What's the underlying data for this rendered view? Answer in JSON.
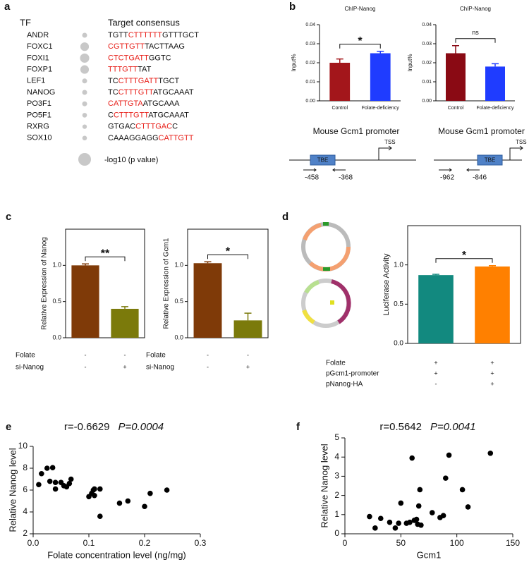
{
  "panel_labels": [
    "a",
    "b",
    "c",
    "d",
    "e",
    "f"
  ],
  "tf_table": {
    "headers": [
      "TF",
      "Target consensus"
    ],
    "rows": [
      {
        "tf": "ANDR",
        "p": 1.0,
        "segments": [
          {
            "text": "TGTT",
            "color": "#111111"
          },
          {
            "text": "CTTTTTT",
            "color": "#e8201a"
          },
          {
            "text": "GTTTGCT",
            "color": "#111111"
          }
        ]
      },
      {
        "tf": "FOXC1",
        "p": 3.0,
        "segments": [
          {
            "text": "CGTTGTT",
            "color": "#e8201a"
          },
          {
            "text": "TACTTAAG",
            "color": "#111111"
          }
        ]
      },
      {
        "tf": "FOXI1",
        "p": 3.5,
        "segments": [
          {
            "text": "CTCTGATT",
            "color": "#e8201a"
          },
          {
            "text": "GGTC",
            "color": "#111111"
          }
        ]
      },
      {
        "tf": "FOXP1",
        "p": 3.0,
        "segments": [
          {
            "text": "TTTGTT",
            "color": "#e8201a"
          },
          {
            "text": "TAT",
            "color": "#111111"
          }
        ]
      },
      {
        "tf": "LEF1",
        "p": 1.0,
        "segments": [
          {
            "text": "TC",
            "color": "#111111"
          },
          {
            "text": "CTTTGATT",
            "color": "#e8201a"
          },
          {
            "text": "TGCT",
            "color": "#111111"
          }
        ]
      },
      {
        "tf": "NANOG",
        "p": 1.0,
        "segments": [
          {
            "text": "TC",
            "color": "#111111"
          },
          {
            "text": "CTTTGTT",
            "color": "#e8201a"
          },
          {
            "text": "ATGCAAAT",
            "color": "#111111"
          }
        ]
      },
      {
        "tf": "PO3F1",
        "p": 1.0,
        "segments": [
          {
            "text": "CATTGTA",
            "color": "#e8201a"
          },
          {
            "text": "ATGCAAA",
            "color": "#111111"
          }
        ]
      },
      {
        "tf": "PO5F1",
        "p": 0.9,
        "segments": [
          {
            "text": "C",
            "color": "#111111"
          },
          {
            "text": "CTTTGTT",
            "color": "#e8201a"
          },
          {
            "text": "ATGCAAAT",
            "color": "#111111"
          }
        ]
      },
      {
        "tf": "RXRG",
        "p": 0.8,
        "segments": [
          {
            "text": "GTGAC",
            "color": "#111111"
          },
          {
            "text": "CTTTGAC",
            "color": "#e8201a"
          },
          {
            "text": "C",
            "color": "#111111"
          }
        ]
      },
      {
        "tf": "SOX10",
        "p": 0.9,
        "segments": [
          {
            "text": "CAAAGGAGG",
            "color": "#111111"
          },
          {
            "text": "CATTGTT",
            "color": "#e8201a"
          }
        ]
      }
    ],
    "legend": "-log10 (p value)"
  },
  "promoters": [
    {
      "title": "Mouse Gcm1 promoter",
      "box": "TBE",
      "tss": "TSS",
      "forward": "-458",
      "reverse": "-368"
    },
    {
      "title": "Mouse Gcm1 promoter",
      "box": "TBE",
      "tss": "TSS",
      "forward": "-962",
      "reverse": "-846"
    }
  ],
  "chart_data": [
    {
      "type": "bar",
      "title": "ChIP-Nanog",
      "ylabel": "Input%",
      "categories": [
        "Control",
        "Folate-deficiency"
      ],
      "values": [
        0.02,
        0.025
      ],
      "errors": [
        0.002,
        0.001
      ],
      "colors": [
        "#a3161b",
        "#1f3cff"
      ],
      "ylim": [
        0,
        0.04
      ],
      "yticks": [
        {
          "value": 0,
          "label": "0.00"
        },
        0.01,
        0.02,
        0.03,
        0.04
      ],
      "significance": "*"
    },
    {
      "type": "bar",
      "title": "ChIP-Nanog",
      "ylabel": "Input%",
      "categories": [
        "Control",
        "Folate-deficiency"
      ],
      "values": [
        0.025,
        0.018
      ],
      "errors": [
        0.004,
        0.0015
      ],
      "colors": [
        "#8a0a14",
        "#1f3cff"
      ],
      "ylim": [
        0,
        0.04
      ],
      "yticks": [
        {
          "value": 0,
          "label": "0.00"
        },
        0.01,
        0.02,
        0.03,
        0.04
      ],
      "significance": "ns"
    },
    {
      "type": "bar",
      "ylabel": "Relative Expression of Nanog",
      "values": [
        1.0,
        0.4
      ],
      "errors": [
        0.02,
        0.03
      ],
      "colors": [
        "#7f3a08",
        "#7b7a0b"
      ],
      "ylim": [
        0,
        1.5
      ],
      "yticks": [
        {
          "value": 0,
          "label": "0.0"
        },
        0.5,
        {
          "value": 1,
          "label": "1.0"
        }
      ],
      "significance": "**",
      "conditions": [
        {
          "label": "Folate",
          "marks": [
            "-",
            "-"
          ]
        },
        {
          "label": "si-Nanog",
          "marks": [
            "-",
            "+"
          ]
        }
      ]
    },
    {
      "type": "bar",
      "ylabel": "Relative Expression of Gcm1",
      "values": [
        1.03,
        0.24
      ],
      "errors": [
        0.02,
        0.1
      ],
      "colors": [
        "#7f3a08",
        "#7b7a0b"
      ],
      "ylim": [
        0,
        1.5
      ],
      "yticks": [
        {
          "value": 0,
          "label": "0.0"
        },
        0.5,
        {
          "value": 1,
          "label": "1.0"
        }
      ],
      "significance": "*",
      "conditions": [
        {
          "label": "Folate",
          "marks": [
            "-",
            "-"
          ]
        },
        {
          "label": "si-Nanog",
          "marks": [
            "-",
            "+"
          ]
        }
      ]
    },
    {
      "type": "bar",
      "ylabel": "Luciferase Activity",
      "values": [
        0.87,
        0.98
      ],
      "errors": [
        0.01,
        0.01
      ],
      "colors": [
        "#12897f",
        "#ff8000"
      ],
      "ylim": [
        0,
        1.5
      ],
      "yticks": [
        {
          "value": 0,
          "label": "0.0"
        },
        0.5,
        {
          "value": 1,
          "label": "1.0"
        }
      ],
      "significance": "*",
      "conditions": [
        {
          "label": "Folate",
          "marks": [
            "+",
            "+"
          ]
        },
        {
          "label": "pGcm1-promoter",
          "marks": [
            "+",
            "+"
          ]
        },
        {
          "label": "pNanog-HA",
          "marks": [
            "-",
            "+"
          ]
        }
      ]
    },
    {
      "type": "scatter",
      "title": "r=-0.6629",
      "stat": "P=0.0004",
      "xlabel": "Folate concentration level (ng/mg)",
      "ylabel": "Relative Nanog level",
      "x": [
        0.01,
        0.015,
        0.025,
        0.03,
        0.035,
        0.04,
        0.04,
        0.05,
        0.055,
        0.06,
        0.065,
        0.068,
        0.1,
        0.105,
        0.108,
        0.11,
        0.11,
        0.12,
        0.12,
        0.155,
        0.17,
        0.2,
        0.21,
        0.24
      ],
      "values": [
        6.5,
        7.5,
        8.0,
        6.8,
        8.05,
        6.1,
        6.7,
        6.7,
        6.4,
        6.3,
        6.6,
        7.0,
        5.4,
        5.7,
        6.0,
        5.5,
        6.1,
        6.1,
        3.6,
        4.8,
        5.0,
        4.5,
        5.7,
        6.0
      ],
      "color": "#000000",
      "xlim": [
        0,
        0.3
      ],
      "xticks": [
        {
          "value": 0,
          "label": "0.0"
        },
        0.1,
        0.2,
        0.3
      ],
      "ylim": [
        2,
        10
      ],
      "yticks": [
        2,
        4,
        6,
        8,
        10
      ]
    },
    {
      "type": "scatter",
      "title": "r=0.5642",
      "stat": "P=0.0041",
      "xlabel": "Gcm1",
      "ylabel": "Relative Nanog level",
      "x": [
        22,
        27,
        32,
        40,
        45,
        48,
        50,
        55,
        58,
        60,
        62,
        64,
        65,
        66,
        67,
        68,
        78,
        85,
        88,
        90,
        93,
        105,
        110,
        130
      ],
      "values": [
        0.9,
        0.3,
        0.8,
        0.6,
        0.3,
        0.55,
        1.6,
        0.55,
        0.6,
        3.95,
        0.7,
        0.75,
        0.5,
        1.45,
        2.3,
        0.45,
        1.1,
        0.85,
        0.95,
        2.9,
        4.1,
        2.3,
        1.4,
        4.2
      ],
      "color": "#000000",
      "xlim": [
        0,
        150
      ],
      "xticks": [
        0,
        50,
        100,
        150
      ],
      "ylim": [
        0,
        5
      ],
      "yticks": [
        0,
        1,
        2,
        3,
        4,
        5
      ]
    }
  ]
}
